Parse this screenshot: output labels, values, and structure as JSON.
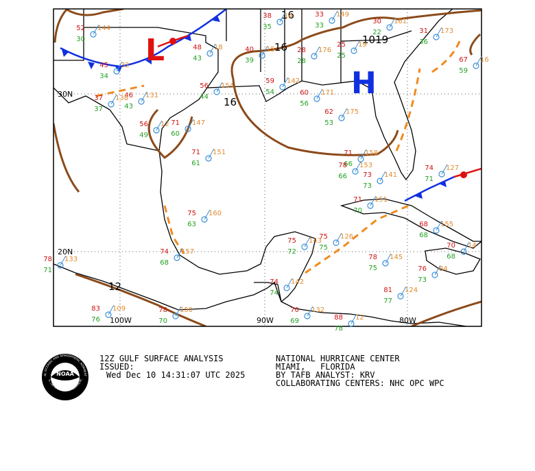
{
  "map": {
    "isobars": [
      "1019",
      "16",
      "16",
      "12",
      "16"
    ],
    "lat_labels": [
      "30N",
      "20N"
    ],
    "lon_labels": [
      "100W",
      "90W",
      "80W"
    ],
    "high": "H",
    "low": "L",
    "stations": [
      {
        "t": "52",
        "td": "30",
        "p": "144"
      },
      {
        "t": "45",
        "td": "34",
        "p": "32"
      },
      {
        "t": "46",
        "td": "43",
        "p": "131"
      },
      {
        "t": "37",
        "td": "37",
        "p": "138"
      },
      {
        "t": "48",
        "td": "43",
        "p": "18"
      },
      {
        "t": "40",
        "td": "39",
        "p": "15"
      },
      {
        "t": "38",
        "td": "35",
        "p": "14"
      },
      {
        "t": "28",
        "td": "28",
        "p": "176"
      },
      {
        "t": "33",
        "td": "33",
        "p": "149"
      },
      {
        "t": "25",
        "td": "25",
        "p": "19"
      },
      {
        "t": "30",
        "td": "22",
        "p": "161"
      },
      {
        "t": "31",
        "td": "36",
        "p": "173"
      },
      {
        "t": "67",
        "td": "59",
        "p": "16"
      },
      {
        "t": "56",
        "td": "49",
        "p": "12"
      },
      {
        "t": "71",
        "td": "60",
        "p": "147"
      },
      {
        "t": "71",
        "td": "61",
        "p": "151"
      },
      {
        "t": "75",
        "td": "63",
        "p": "160"
      },
      {
        "t": "74",
        "td": "68",
        "p": "157"
      },
      {
        "t": "59",
        "td": "54",
        "p": "142"
      },
      {
        "t": "60",
        "td": "56",
        "p": "171"
      },
      {
        "t": "62",
        "td": "53",
        "p": "175"
      },
      {
        "t": "71",
        "td": "66",
        "p": "158"
      },
      {
        "t": "78",
        "td": "66",
        "p": "153"
      },
      {
        "t": "73",
        "td": "73",
        "p": "141"
      },
      {
        "t": "75",
        "td": "75",
        "p": "126"
      },
      {
        "t": "75",
        "td": "72",
        "p": "143"
      },
      {
        "t": "74",
        "td": "74",
        "p": "142"
      },
      {
        "t": "70",
        "td": "69",
        "p": "132"
      },
      {
        "t": "88",
        "td": "78",
        "p": "12"
      },
      {
        "t": "78",
        "td": "75",
        "p": "145"
      },
      {
        "t": "81",
        "td": "77",
        "p": "124"
      },
      {
        "t": "68",
        "td": "68",
        "p": "155"
      },
      {
        "t": "74",
        "td": "71",
        "p": "127"
      },
      {
        "t": "70",
        "td": "68",
        "p": "14"
      },
      {
        "t": "76",
        "td": "73",
        "p": "84"
      },
      {
        "t": "83",
        "td": "76",
        "p": "109"
      },
      {
        "t": "78",
        "td": "70",
        "p": "150"
      },
      {
        "t": "78",
        "td": "71",
        "p": "133"
      },
      {
        "t": "71",
        "td": "70",
        "p": "151"
      },
      {
        "t": "56",
        "td": "44",
        "p": "154"
      }
    ]
  },
  "footer": {
    "title": "12Z GULF SURFACE ANALYSIS",
    "issued": "ISSUED:",
    "time": "Wed Dec 10 14:31:07 UTC 2025",
    "center": "NATIONAL HURRICANE CENTER",
    "city": "MIAMI,   FLORIDA",
    "analyst": "BY TAFB ANALYST: KRV",
    "collab": "COLLABORATING CENTERS: NHC OPC WPC"
  },
  "logo": {
    "text": "NOAA",
    "ring_top": "NATIONAL OCEANIC AND ATMOSPHERIC ADMINISTRATION",
    "ring_bottom": "U.S. DEPARTMENT OF COMMERCE"
  }
}
